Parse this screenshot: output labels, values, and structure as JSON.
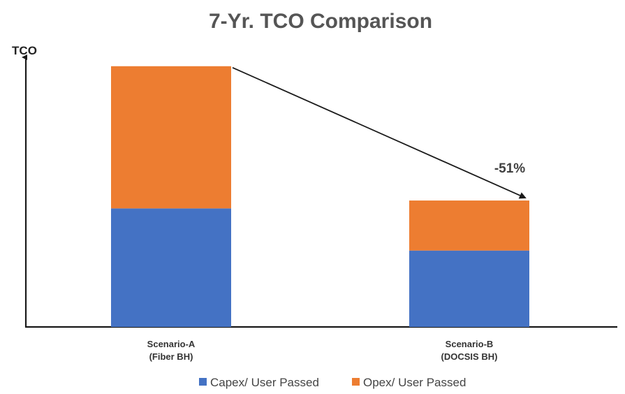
{
  "chart_data": {
    "type": "bar",
    "stacked": true,
    "title": "7-Yr. TCO Comparison",
    "ylabel": "TCO",
    "xlabel": "",
    "categories": [
      [
        "Scenario-A",
        "(Fiber BH)"
      ],
      [
        "Scenario-B",
        "(DOCSIS BH)"
      ]
    ],
    "series": [
      {
        "name": "Capex/ User Passed",
        "color": "#4472C4",
        "values": [
          45,
          29
        ]
      },
      {
        "name": "Opex/ User Passed",
        "color": "#ED7D31",
        "values": [
          54,
          19
        ]
      }
    ],
    "ylim": [
      0,
      100
    ],
    "y_ticks_shown": false,
    "grid": false,
    "legend": "bottom",
    "annotation": {
      "text": "-51%",
      "type": "arrow",
      "from_category": 0,
      "to_category": 1
    }
  }
}
